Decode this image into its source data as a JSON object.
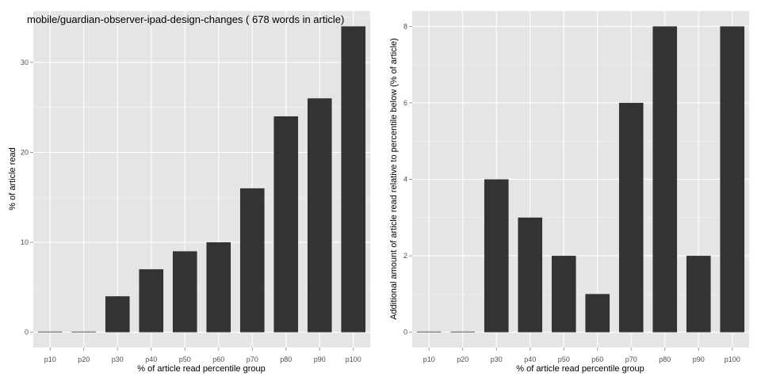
{
  "chart_data": [
    {
      "type": "bar",
      "title": "mobile/guardian-observer-ipad-design-changes ( 678 words in article)",
      "xlabel": "% of article read percentile group",
      "ylabel": "% of article read",
      "categories": [
        "p10",
        "p20",
        "p30",
        "p40",
        "p50",
        "p60",
        "p70",
        "p80",
        "p90",
        "p100"
      ],
      "values": [
        0,
        0,
        4,
        7,
        9,
        10,
        16,
        24,
        26,
        34
      ],
      "ylim": [
        -1.7,
        35.7
      ],
      "yticks": [
        0,
        10,
        20,
        30
      ],
      "grid": true,
      "bar_color": "#333333",
      "panel_color": "#e5e5e5",
      "grid_color": "#ffffff"
    },
    {
      "type": "bar",
      "title": "",
      "xlabel": "% of article read percentile group",
      "ylabel": "Additional amount of article read relative to percentile below (% of article)",
      "categories": [
        "p10",
        "p20",
        "p30",
        "p40",
        "p50",
        "p60",
        "p70",
        "p80",
        "p90",
        "p100"
      ],
      "values": [
        0,
        0,
        4,
        3,
        2,
        1,
        6,
        8,
        2,
        8
      ],
      "ylim": [
        -0.4,
        8.4
      ],
      "yticks": [
        0,
        2,
        4,
        6,
        8
      ],
      "grid": true,
      "bar_color": "#333333",
      "panel_color": "#e5e5e5",
      "grid_color": "#ffffff"
    }
  ]
}
